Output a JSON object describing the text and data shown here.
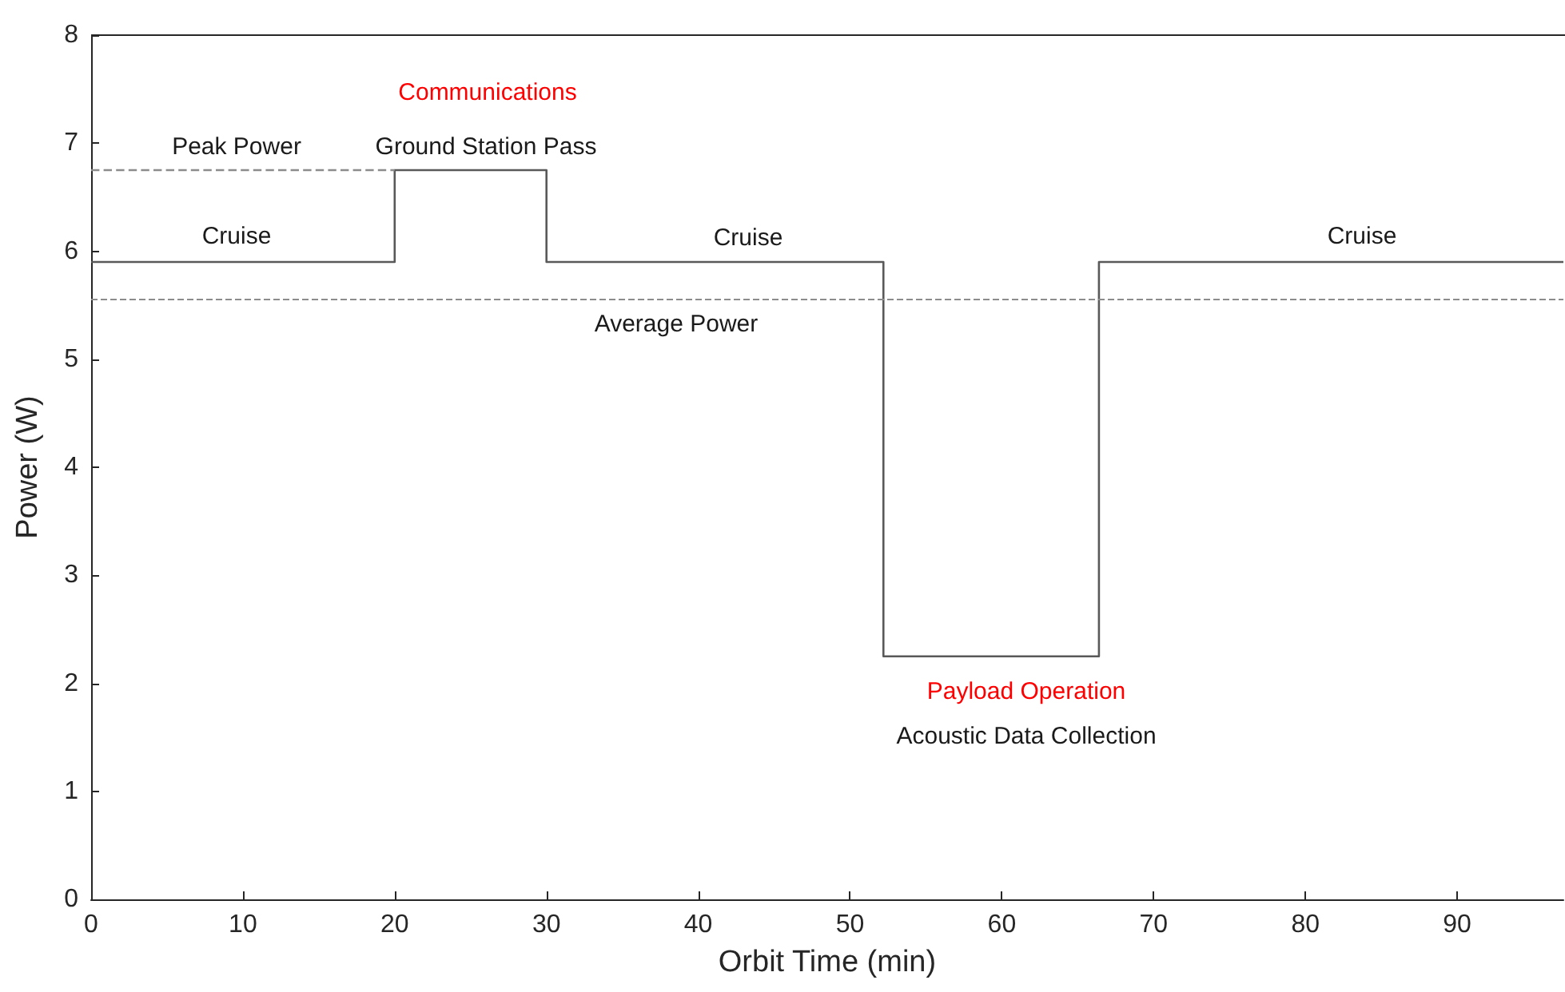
{
  "chart_data": {
    "type": "step",
    "xlabel": "Orbit Time (min)",
    "ylabel": "Power (W)",
    "xlim": [
      0,
      97
    ],
    "xticks": [
      0,
      10,
      20,
      30,
      40,
      50,
      60,
      70,
      80,
      90
    ],
    "ylim": [
      0,
      8
    ],
    "yticks": [
      0,
      1,
      2,
      3,
      4,
      5,
      6,
      7,
      8
    ],
    "grid": false,
    "series": [
      {
        "color": "#595959",
        "x": [
          0,
          20,
          30,
          52.2,
          66.4,
          97
        ],
        "values": [
          5.9,
          6.75,
          5.9,
          2.25,
          5.9,
          5.9
        ]
      },
      {
        "type": "line",
        "line_style": "dashed",
        "color": "#8c8c8c",
        "x": [
          0,
          20
        ],
        "values": [
          6.75,
          6.75
        ]
      }
    ],
    "ref_lines": [
      {
        "axis": "y",
        "value": 5.56,
        "color": "#8c8c8c",
        "line_style": "dashed"
      }
    ],
    "annotations": [
      "Communications",
      "Peak Power",
      "Ground Station Pass",
      "Cruise",
      "Cruise",
      "Cruise",
      "Average Power",
      "Payload Operation",
      "Acoustic Data Collection"
    ]
  }
}
